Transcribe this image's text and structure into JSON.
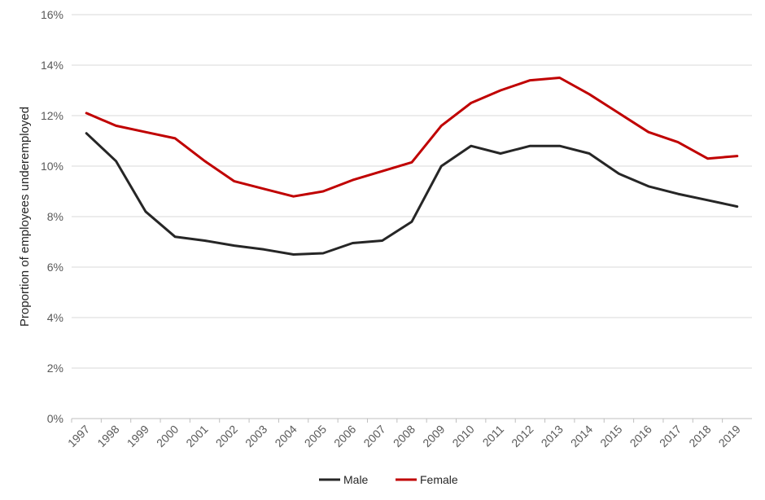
{
  "chart_data": {
    "type": "line",
    "title": "",
    "xlabel": "",
    "ylabel": "Proportion of employees underemployed",
    "ylim": [
      0,
      16
    ],
    "yticks": [
      "0%",
      "2%",
      "4%",
      "6%",
      "8%",
      "10%",
      "12%",
      "14%",
      "16%"
    ],
    "ytick_values": [
      0,
      2,
      4,
      6,
      8,
      10,
      12,
      14,
      16
    ],
    "grid": true,
    "legend_position": "bottom",
    "x": [
      "1997",
      "1998",
      "1999",
      "2000",
      "2001",
      "2002",
      "2003",
      "2004",
      "2005",
      "2006",
      "2007",
      "2008",
      "2009",
      "2010",
      "2011",
      "2012",
      "2013",
      "2014",
      "2015",
      "2016",
      "2017",
      "2018",
      "2019"
    ],
    "series": [
      {
        "name": "Male",
        "color": "#262626",
        "values": [
          11.3,
          10.2,
          8.2,
          7.2,
          7.05,
          6.85,
          6.7,
          6.5,
          6.55,
          6.95,
          7.05,
          7.8,
          10.0,
          10.8,
          10.5,
          10.8,
          10.8,
          10.5,
          9.7,
          9.2,
          8.9,
          8.65,
          8.4
        ]
      },
      {
        "name": "Female",
        "color": "#c00000",
        "values": [
          12.1,
          11.6,
          11.35,
          11.1,
          10.2,
          9.4,
          9.1,
          8.8,
          9.0,
          9.45,
          9.8,
          10.15,
          11.6,
          12.5,
          13.0,
          13.4,
          13.5,
          12.85,
          12.1,
          11.35,
          10.95,
          10.3,
          10.4
        ]
      }
    ]
  }
}
